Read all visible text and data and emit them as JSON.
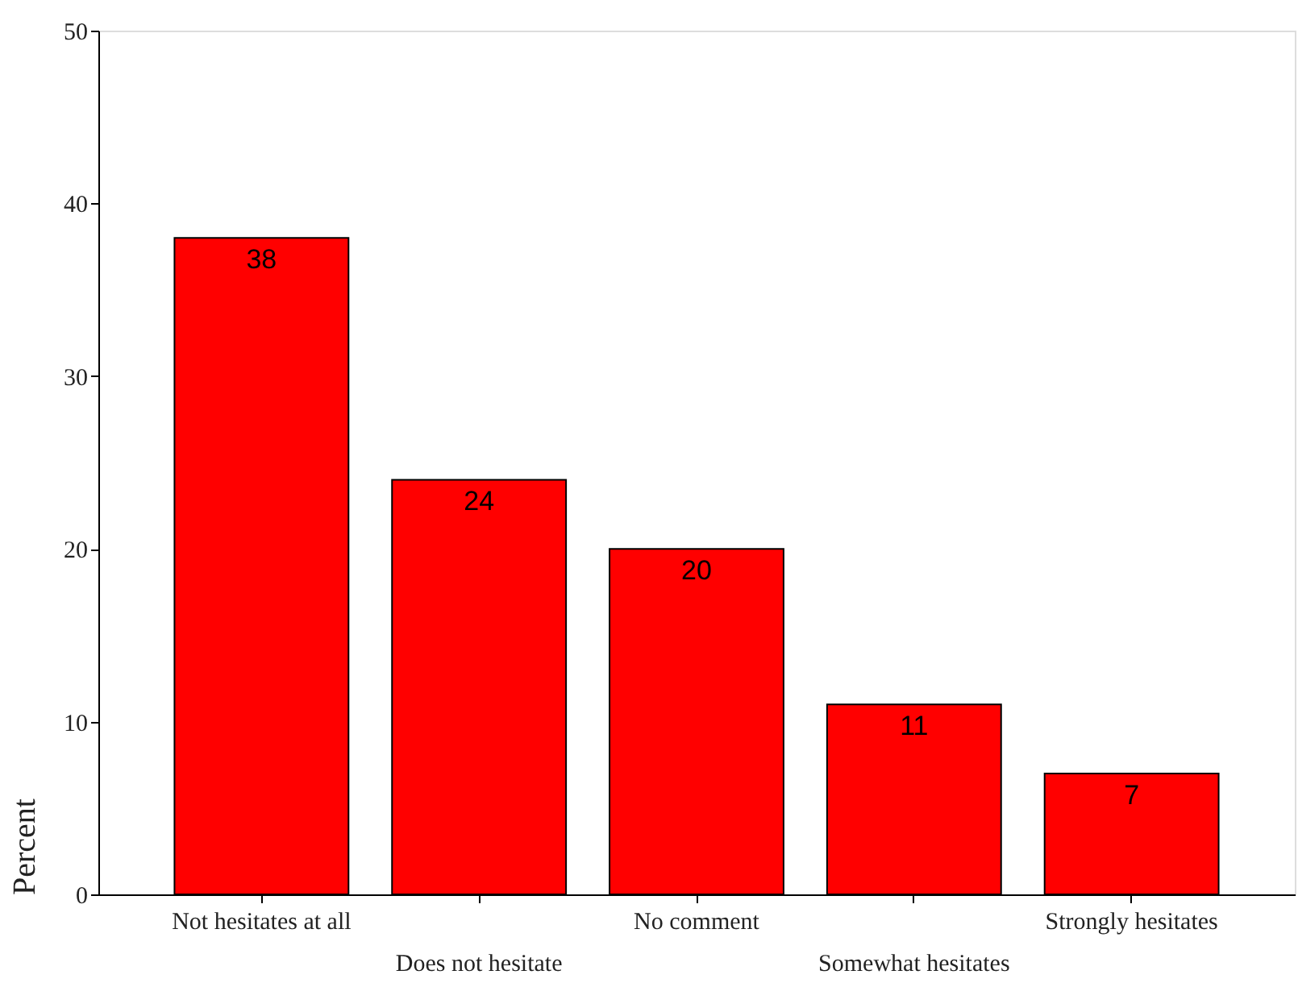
{
  "chart_data": {
    "type": "bar",
    "ylabel": "Percent",
    "categories": [
      "Not hesitates at all",
      "Does not hesitate",
      "No comment",
      "Somewhat hesitates",
      "Strongly hesitates"
    ],
    "values": [
      38,
      24,
      20,
      11,
      7
    ],
    "color": "#ff0000",
    "data_labels": true,
    "ylim": [
      0,
      50
    ],
    "yticks": [
      0,
      10,
      20,
      30,
      40,
      50
    ],
    "grid": false
  }
}
